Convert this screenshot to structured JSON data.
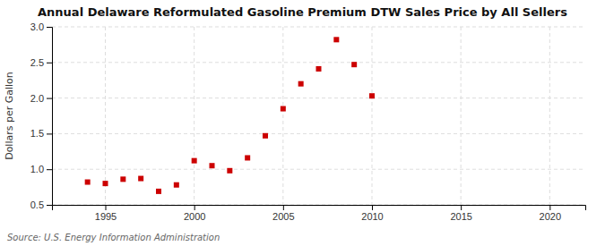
{
  "chart_data": {
    "type": "scatter",
    "title": "Annual Delaware Reformulated Gasoline Premium DTW Sales Price by All Sellers",
    "ylabel": "Dollars per Gallon",
    "annotations": [
      "Source: U.S. Energy Information Administration"
    ],
    "x": [
      1994,
      1995,
      1996,
      1997,
      1998,
      1999,
      2000,
      2001,
      2002,
      2003,
      2004,
      2005,
      2006,
      2007,
      2008,
      2009,
      2010
    ],
    "y": [
      0.82,
      0.8,
      0.86,
      0.87,
      0.69,
      0.78,
      1.12,
      1.05,
      0.98,
      1.16,
      1.47,
      1.85,
      2.2,
      2.41,
      2.82,
      2.47,
      2.03
    ],
    "color": "#cc0000",
    "marker": "square",
    "xlim": [
      1992,
      2022
    ],
    "ylim": [
      0.5,
      3.0
    ],
    "xticks": [
      1995,
      2000,
      2005,
      2010,
      2015,
      2020
    ],
    "yticks": [
      0.5,
      {
        "value": 1.0,
        "label": "1.0"
      },
      1.5,
      {
        "value": 2.0,
        "label": "2.0"
      },
      2.5,
      {
        "value": 3.0,
        "label": "3.0"
      }
    ],
    "grid": true
  }
}
